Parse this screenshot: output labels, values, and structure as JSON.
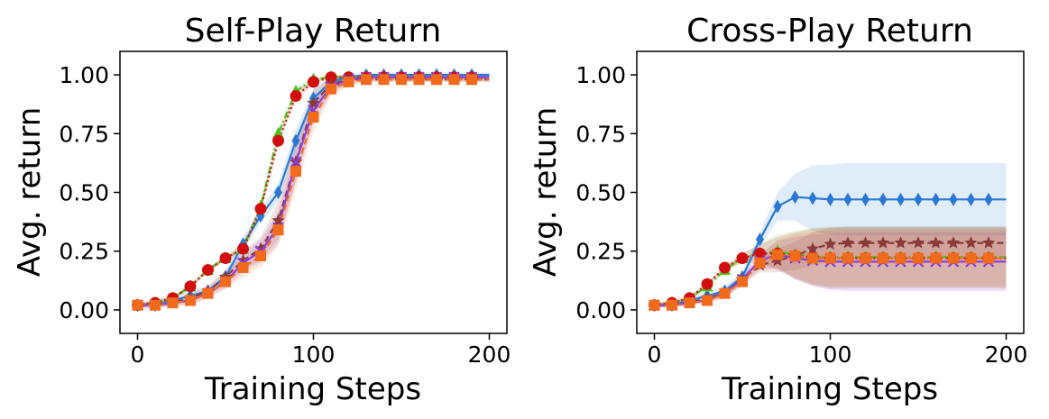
{
  "chart_data": [
    {
      "type": "line",
      "title": "Self-Play Return",
      "xlabel": "Training Steps",
      "ylabel": "Avg. return",
      "xlim": [
        -10,
        210
      ],
      "ylim": [
        -0.1,
        1.1
      ],
      "xticks": [
        0,
        100,
        200
      ],
      "xtick_labels": [
        "0",
        "100",
        "200"
      ],
      "yticks": [
        0.0,
        0.25,
        0.5,
        0.75,
        1.0
      ],
      "ytick_labels": [
        "0.00",
        "0.25",
        "0.50",
        "0.75",
        "1.00"
      ],
      "x": [
        0,
        10,
        20,
        30,
        40,
        50,
        60,
        70,
        80,
        90,
        100,
        110,
        120,
        130,
        140,
        150,
        160,
        170,
        180,
        190,
        200
      ],
      "series": [
        {
          "name": "blue-diamond",
          "color": "#2a78d6",
          "marker": "diamond",
          "dash": "solid",
          "values": [
            0.02,
            0.02,
            0.04,
            0.06,
            0.08,
            0.14,
            0.28,
            0.4,
            0.5,
            0.72,
            0.9,
            0.97,
            0.99,
            1.0,
            1.0,
            1.0,
            1.0,
            1.0,
            1.0,
            1.0,
            1.0
          ],
          "band": [
            0.02,
            0.02,
            0.02,
            0.02,
            0.02,
            0.03,
            0.03,
            0.03,
            0.04,
            0.05,
            0.04,
            0.02,
            0.01,
            0.01,
            0.01,
            0.01,
            0.01,
            0.01,
            0.01,
            0.01,
            0.01
          ]
        },
        {
          "name": "green-triangle",
          "color": "#4ec21a",
          "marker": "triangle",
          "dash": "dashdot",
          "values": [
            0.02,
            0.03,
            0.05,
            0.1,
            0.17,
            0.22,
            0.26,
            0.44,
            0.75,
            0.93,
            0.98,
            0.99,
            0.99,
            0.99,
            0.99,
            0.99,
            0.99,
            0.99,
            0.99,
            0.99,
            0.99
          ],
          "band": [
            0.01,
            0.01,
            0.01,
            0.01,
            0.01,
            0.01,
            0.02,
            0.02,
            0.02,
            0.02,
            0.01,
            0.01,
            0.01,
            0.01,
            0.01,
            0.01,
            0.01,
            0.01,
            0.01,
            0.01,
            0.01
          ]
        },
        {
          "name": "red-circle",
          "color": "#d10f0f",
          "marker": "circle",
          "dash": "dotted",
          "values": [
            0.02,
            0.03,
            0.05,
            0.1,
            0.17,
            0.22,
            0.26,
            0.43,
            0.72,
            0.91,
            0.97,
            0.99,
            0.99,
            0.99,
            0.99,
            0.99,
            0.99,
            0.99,
            0.99,
            0.99,
            0.99
          ],
          "band": [
            0.01,
            0.01,
            0.01,
            0.01,
            0.01,
            0.01,
            0.02,
            0.02,
            0.02,
            0.02,
            0.01,
            0.01,
            0.01,
            0.01,
            0.01,
            0.01,
            0.01,
            0.01,
            0.01,
            0.01,
            0.01
          ]
        },
        {
          "name": "brown-star",
          "color": "#8b3a3a",
          "marker": "star",
          "dash": "dashed",
          "values": [
            0.02,
            0.02,
            0.03,
            0.05,
            0.08,
            0.14,
            0.21,
            0.26,
            0.38,
            0.63,
            0.88,
            0.96,
            0.98,
            0.98,
            0.98,
            0.98,
            0.98,
            0.98,
            0.98,
            0.98,
            0.98
          ],
          "band": [
            0.01,
            0.01,
            0.01,
            0.02,
            0.02,
            0.03,
            0.04,
            0.05,
            0.08,
            0.09,
            0.06,
            0.03,
            0.02,
            0.01,
            0.01,
            0.01,
            0.01,
            0.01,
            0.01,
            0.01,
            0.01
          ]
        },
        {
          "name": "purple-x",
          "color": "#8a3fdc",
          "marker": "x",
          "dash": "solid",
          "values": [
            0.02,
            0.02,
            0.03,
            0.04,
            0.07,
            0.12,
            0.2,
            0.25,
            0.35,
            0.63,
            0.85,
            0.95,
            0.98,
            0.99,
            0.99,
            0.99,
            0.99,
            0.99,
            0.99,
            0.99,
            0.99
          ],
          "band": [
            0.01,
            0.01,
            0.01,
            0.02,
            0.02,
            0.03,
            0.04,
            0.05,
            0.07,
            0.08,
            0.06,
            0.03,
            0.02,
            0.01,
            0.01,
            0.01,
            0.01,
            0.01,
            0.01,
            0.01,
            0.01
          ]
        },
        {
          "name": "orange-square",
          "color": "#f26b1d",
          "marker": "square",
          "dash": "dashed",
          "values": [
            0.02,
            0.02,
            0.03,
            0.04,
            0.07,
            0.12,
            0.18,
            0.23,
            0.34,
            0.59,
            0.82,
            0.94,
            0.97,
            0.98,
            0.98,
            0.98,
            0.98,
            0.98,
            0.98,
            0.98,
            0.98
          ],
          "band": [
            0.01,
            0.01,
            0.01,
            0.02,
            0.02,
            0.03,
            0.04,
            0.05,
            0.07,
            0.08,
            0.06,
            0.03,
            0.02,
            0.01,
            0.01,
            0.01,
            0.01,
            0.01,
            0.01,
            0.01,
            0.01
          ]
        }
      ]
    },
    {
      "type": "line",
      "title": "Cross-Play Return",
      "xlabel": "Training Steps",
      "ylabel": "Avg. return",
      "xlim": [
        -10,
        210
      ],
      "ylim": [
        -0.1,
        1.1
      ],
      "xticks": [
        0,
        100,
        200
      ],
      "xtick_labels": [
        "0",
        "100",
        "200"
      ],
      "yticks": [
        0.0,
        0.25,
        0.5,
        0.75,
        1.0
      ],
      "ytick_labels": [
        "0.00",
        "0.25",
        "0.50",
        "0.75",
        "1.00"
      ],
      "x": [
        0,
        10,
        20,
        30,
        40,
        50,
        60,
        70,
        80,
        90,
        100,
        110,
        120,
        130,
        140,
        150,
        160,
        170,
        180,
        190,
        200
      ],
      "series": [
        {
          "name": "blue-diamond",
          "color": "#2a78d6",
          "marker": "diamond",
          "dash": "solid",
          "values": [
            0.02,
            0.02,
            0.04,
            0.06,
            0.08,
            0.14,
            0.3,
            0.44,
            0.48,
            0.475,
            0.47,
            0.47,
            0.47,
            0.47,
            0.47,
            0.47,
            0.47,
            0.47,
            0.47,
            0.47,
            0.47
          ],
          "band": [
            0.01,
            0.01,
            0.01,
            0.02,
            0.02,
            0.02,
            0.03,
            0.06,
            0.1,
            0.14,
            0.15,
            0.155,
            0.155,
            0.155,
            0.155,
            0.155,
            0.155,
            0.155,
            0.155,
            0.155,
            0.155
          ]
        },
        {
          "name": "green-triangle",
          "color": "#4ec21a",
          "marker": "triangle",
          "dash": "dashdot",
          "values": [
            0.02,
            0.03,
            0.05,
            0.1,
            0.17,
            0.22,
            0.24,
            0.25,
            0.235,
            0.23,
            0.225,
            0.225,
            0.225,
            0.225,
            0.225,
            0.225,
            0.225,
            0.225,
            0.225,
            0.225,
            0.225
          ],
          "band": [
            0.01,
            0.01,
            0.01,
            0.01,
            0.01,
            0.02,
            0.04,
            0.07,
            0.1,
            0.12,
            0.13,
            0.13,
            0.13,
            0.13,
            0.13,
            0.13,
            0.13,
            0.13,
            0.13,
            0.13,
            0.13
          ]
        },
        {
          "name": "red-circle",
          "color": "#d10f0f",
          "marker": "circle",
          "dash": "dotted",
          "values": [
            0.02,
            0.03,
            0.05,
            0.11,
            0.18,
            0.22,
            0.24,
            0.24,
            0.23,
            0.225,
            0.22,
            0.22,
            0.22,
            0.22,
            0.22,
            0.22,
            0.22,
            0.22,
            0.22,
            0.22,
            0.22
          ],
          "band": [
            0.01,
            0.01,
            0.01,
            0.01,
            0.01,
            0.02,
            0.04,
            0.07,
            0.1,
            0.12,
            0.13,
            0.13,
            0.13,
            0.13,
            0.13,
            0.13,
            0.13,
            0.13,
            0.13,
            0.13,
            0.13
          ]
        },
        {
          "name": "brown-star",
          "color": "#8b3a3a",
          "marker": "star",
          "dash": "dashed",
          "values": [
            0.02,
            0.02,
            0.03,
            0.05,
            0.07,
            0.13,
            0.19,
            0.21,
            0.23,
            0.26,
            0.28,
            0.285,
            0.285,
            0.285,
            0.285,
            0.285,
            0.285,
            0.285,
            0.285,
            0.285,
            0.285
          ],
          "band": [
            0.01,
            0.01,
            0.01,
            0.01,
            0.02,
            0.02,
            0.03,
            0.05,
            0.06,
            0.07,
            0.07,
            0.07,
            0.07,
            0.07,
            0.07,
            0.07,
            0.07,
            0.07,
            0.07,
            0.07,
            0.07
          ]
        },
        {
          "name": "purple-x",
          "color": "#8a3fdc",
          "marker": "x",
          "dash": "solid",
          "values": [
            0.02,
            0.02,
            0.03,
            0.04,
            0.07,
            0.13,
            0.21,
            0.235,
            0.22,
            0.21,
            0.205,
            0.205,
            0.205,
            0.205,
            0.205,
            0.205,
            0.205,
            0.205,
            0.205,
            0.205,
            0.205
          ],
          "band": [
            0.01,
            0.01,
            0.01,
            0.01,
            0.02,
            0.02,
            0.03,
            0.06,
            0.09,
            0.11,
            0.12,
            0.125,
            0.125,
            0.125,
            0.125,
            0.125,
            0.125,
            0.125,
            0.125,
            0.125,
            0.125
          ]
        },
        {
          "name": "orange-square",
          "color": "#f26b1d",
          "marker": "square",
          "dash": "dashed",
          "values": [
            0.02,
            0.02,
            0.03,
            0.04,
            0.07,
            0.12,
            0.2,
            0.235,
            0.23,
            0.22,
            0.22,
            0.22,
            0.22,
            0.22,
            0.22,
            0.22,
            0.22,
            0.22,
            0.22,
            0.22,
            0.22
          ],
          "band": [
            0.01,
            0.01,
            0.01,
            0.01,
            0.02,
            0.02,
            0.03,
            0.06,
            0.09,
            0.11,
            0.12,
            0.12,
            0.12,
            0.12,
            0.12,
            0.12,
            0.12,
            0.12,
            0.12,
            0.12,
            0.12
          ]
        }
      ]
    }
  ]
}
